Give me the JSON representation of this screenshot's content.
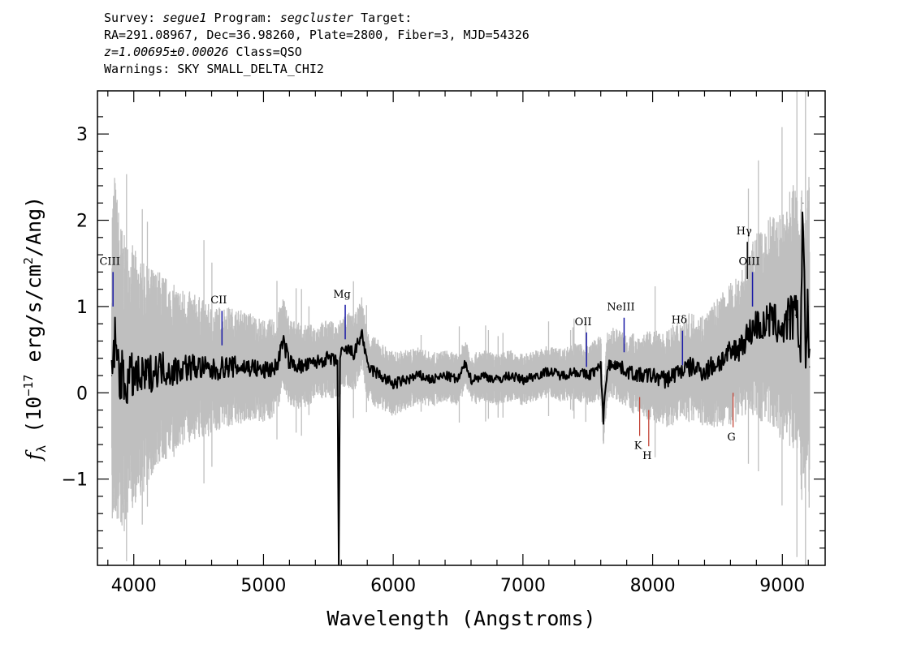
{
  "header": {
    "line1": {
      "survey_label": "Survey: ",
      "survey": "segue1",
      "program_label": " Program: ",
      "program": "segcluster",
      "target_label": " Target:"
    },
    "line2": "RA=291.08967, Dec=36.98260, Plate=2800, Fiber=3, MJD=54326",
    "line3": {
      "z": "z=1.00695±0.00026",
      "class": " Class=QSO"
    },
    "line4": "Warnings: SKY SMALL_DELTA_CHI2"
  },
  "chart_data": {
    "type": "line",
    "xlabel": "Wavelength (Angstroms)",
    "ylabel": "f_λ (10^-17 erg/s/cm^2/Ang)",
    "ylabel_parts": {
      "f": "f",
      "sub": "λ",
      "pre": " (10",
      "exp": "−17",
      "mid": " erg/s/cm",
      "exp2": "2",
      "post": "/Ang)"
    },
    "xlim": [
      3720,
      9330
    ],
    "ylim": [
      -2.0,
      3.5
    ],
    "xticks": [
      4000,
      5000,
      6000,
      7000,
      8000,
      9000
    ],
    "xtick_labels": [
      "4000",
      "5000",
      "6000",
      "7000",
      "8000",
      "9000"
    ],
    "yticks": [
      -1,
      0,
      1,
      2,
      3
    ],
    "ytick_labels": [
      "−1",
      "0",
      "1",
      "2",
      "3"
    ],
    "grid": false,
    "colors": {
      "flux": "#000000",
      "error_band": "#bfbfbf",
      "emission_marker": "#1a1aa6",
      "absorption_marker": "#c0392b"
    },
    "series": [
      {
        "name": "",
        "x": [
          3830,
          3850,
          3870,
          3900,
          3930,
          3960,
          4000,
          4050,
          4100,
          4150,
          4200,
          4300,
          4400,
          4500,
          4600,
          4700,
          4800,
          4900,
          5000,
          5100,
          5150,
          5200,
          5300,
          5400,
          5500,
          5570,
          5580,
          5590,
          5600,
          5650,
          5700,
          5760,
          5800,
          5900,
          6000,
          6100,
          6200,
          6300,
          6400,
          6500,
          6560,
          6600,
          6700,
          6800,
          6900,
          7000,
          7100,
          7200,
          7300,
          7400,
          7500,
          7600,
          7620,
          7650,
          7700,
          7800,
          7900,
          8000,
          8100,
          8200,
          8300,
          8400,
          8500,
          8600,
          8650,
          8700,
          8750,
          8800,
          8850,
          8900,
          8950,
          9000,
          9050,
          9100,
          9140,
          9160,
          9180,
          9200,
          9210
        ],
        "y": [
          0.2,
          0.6,
          0.4,
          0.2,
          0.1,
          0.15,
          0.2,
          0.15,
          0.2,
          0.25,
          0.3,
          0.25,
          0.3,
          0.3,
          0.25,
          0.3,
          0.3,
          0.3,
          0.25,
          0.3,
          0.6,
          0.35,
          0.3,
          0.35,
          0.4,
          0.35,
          -2.0,
          0.4,
          0.45,
          0.5,
          0.45,
          0.7,
          0.3,
          0.2,
          0.1,
          0.15,
          0.2,
          0.15,
          0.2,
          0.15,
          0.35,
          0.15,
          0.2,
          0.15,
          0.2,
          0.15,
          0.2,
          0.25,
          0.2,
          0.25,
          0.2,
          0.3,
          -0.3,
          0.3,
          0.35,
          0.25,
          0.2,
          0.2,
          0.15,
          0.25,
          0.3,
          0.25,
          0.35,
          0.45,
          0.5,
          0.6,
          0.7,
          0.8,
          0.75,
          0.85,
          0.8,
          0.75,
          0.85,
          0.9,
          0.6,
          2.2,
          0.4,
          1.0,
          0.3
        ]
      }
    ],
    "error_band": {
      "x": [
        3830,
        3900,
        4000,
        4100,
        4200,
        4400,
        4600,
        4800,
        5000,
        5200,
        5400,
        5600,
        5800,
        6000,
        6200,
        6400,
        6600,
        6800,
        7000,
        7200,
        7400,
        7600,
        7800,
        8000,
        8200,
        8400,
        8600,
        8700,
        8800,
        8900,
        9000,
        9100,
        9200
      ],
      "sigma": [
        1.4,
        1.2,
        1.0,
        0.85,
        0.75,
        0.6,
        0.5,
        0.45,
        0.4,
        0.35,
        0.3,
        0.3,
        0.28,
        0.25,
        0.22,
        0.2,
        0.2,
        0.2,
        0.2,
        0.2,
        0.22,
        0.25,
        0.3,
        0.35,
        0.4,
        0.45,
        0.55,
        0.6,
        0.7,
        0.8,
        0.9,
        1.1,
        1.3
      ]
    },
    "emission_lines": [
      {
        "label": "CIII",
        "x": 3840,
        "y_bottom": 1.0,
        "y_top": 1.4
      },
      {
        "label": "CII",
        "x": 4680,
        "y_bottom": 0.55,
        "y_top": 0.95
      },
      {
        "label": "Mg",
        "x": 5630,
        "y_bottom": 0.62,
        "y_top": 1.02
      },
      {
        "label": "OII",
        "x": 7490,
        "y_bottom": 0.3,
        "y_top": 0.7
      },
      {
        "label": "NeIII",
        "x": 7780,
        "y_bottom": 0.47,
        "y_top": 0.87
      },
      {
        "label": "Hδ",
        "x": 8230,
        "y_bottom": 0.32,
        "y_top": 0.72
      },
      {
        "label": "Hγ",
        "x": 8730,
        "y_bottom": 1.32,
        "y_top": 1.75
      },
      {
        "label": "OIII",
        "x": 8770,
        "y_bottom": 1.0,
        "y_top": 1.4
      }
    ],
    "absorption_lines": [
      {
        "label": "K",
        "x": 7900,
        "y_top": -0.05,
        "y_bottom": -0.5
      },
      {
        "label": "H",
        "x": 7970,
        "y_top": -0.2,
        "y_bottom": -0.62
      },
      {
        "label": "G",
        "x": 8620,
        "y_top": 0.0,
        "y_bottom": -0.4
      }
    ]
  }
}
